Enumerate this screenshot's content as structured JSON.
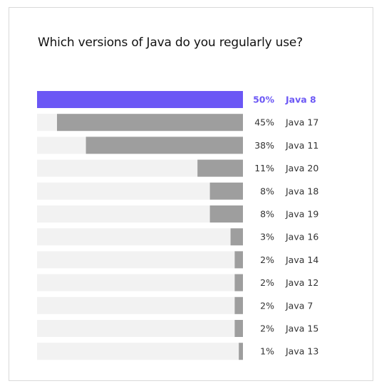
{
  "chart_data": {
    "type": "bar",
    "orientation": "horizontal",
    "title": "Which versions of Java do you regularly use?",
    "xlabel": "",
    "ylabel": "",
    "xlim": [
      0,
      50
    ],
    "grid": false,
    "legend": "none",
    "highlight_index": 0,
    "colors": {
      "highlight": "#6b57f5",
      "bar": "#9e9e9e",
      "track": "#f2f2f2",
      "text": "#333333"
    },
    "categories": [
      "Java 8",
      "Java 17",
      "Java 11",
      "Java 20",
      "Java 18",
      "Java 19",
      "Java 16",
      "Java 14",
      "Java 12",
      "Java 7",
      "Java 15",
      "Java 13"
    ],
    "values": [
      50,
      45,
      38,
      11,
      8,
      8,
      3,
      2,
      2,
      2,
      2,
      1
    ],
    "value_labels": [
      "50%",
      "45%",
      "38%",
      "11%",
      "8%",
      "8%",
      "3%",
      "2%",
      "2%",
      "2%",
      "2%",
      "1%"
    ]
  }
}
